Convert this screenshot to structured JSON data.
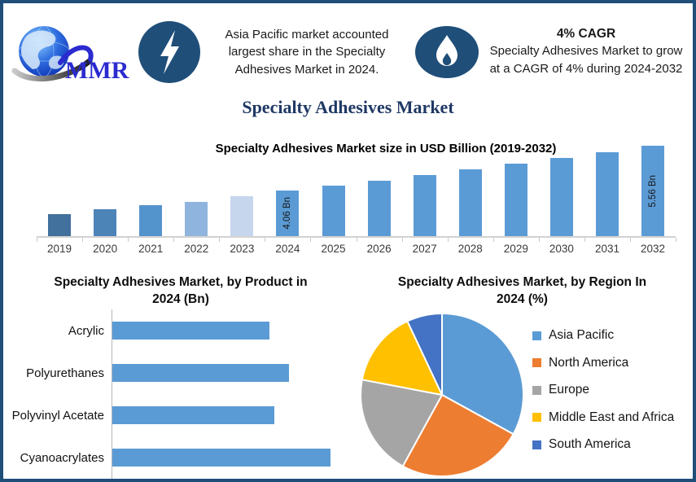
{
  "brand": {
    "name": "MMR"
  },
  "header": {
    "highlight": "Asia Pacific market accounted largest share in the Specialty Adhesives Market in 2024.",
    "cagr_title": "4% CAGR",
    "cagr_text": "Specialty Adhesives Market to grow at a CAGR of 4% during 2024-2032"
  },
  "page_title": "Specialty Adhesives Market",
  "colors": {
    "border": "#1f4e79",
    "title": "#1f3864",
    "icon_circle": "#1f4e79",
    "bar_default": "#5b9bd5",
    "axis": "#c9c9c9"
  },
  "chart_data": [
    {
      "id": "market_size",
      "type": "bar",
      "title": "Specialty Adhesives Market size in USD Billion (2019-2032)",
      "categories": [
        "2019",
        "2020",
        "2021",
        "2022",
        "2023",
        "2024",
        "2025",
        "2026",
        "2027",
        "2028",
        "2029",
        "2030",
        "2031",
        "2032"
      ],
      "values": [
        3.27,
        3.43,
        3.55,
        3.68,
        3.87,
        4.06,
        4.22,
        4.39,
        4.57,
        4.75,
        4.94,
        5.14,
        5.34,
        5.56
      ],
      "data_labels": [
        "",
        "",
        "",
        "",
        "",
        "4.06 Bn",
        "",
        "",
        "",
        "",
        "",
        "",
        "",
        "5.56 Bn"
      ],
      "bar_colors": [
        "#41719c",
        "#4c84b8",
        "#5494cd",
        "#8fb5de",
        "#c6d6ed",
        "#5b9bd5",
        "#5b9bd5",
        "#5b9bd5",
        "#5b9bd5",
        "#5b9bd5",
        "#5b9bd5",
        "#5b9bd5",
        "#5b9bd5",
        "#5b9bd5"
      ],
      "ylabel": "USD Billion",
      "ylim": [
        2.53,
        5.63
      ],
      "grid": false,
      "legend_position": "none"
    },
    {
      "id": "by_product",
      "type": "bar",
      "orientation": "horizontal",
      "title": "Specialty Adhesives Market, by Product in 2024 (Bn)",
      "categories": [
        "Acrylic",
        "Polyurethanes",
        "Polyvinyl Acetate",
        "Cyanoacrylates"
      ],
      "values": [
        0.9,
        1.01,
        0.93,
        1.25
      ],
      "xlim": [
        0,
        1.25
      ],
      "bar_color": "#5b9bd5",
      "grid": false,
      "legend_position": "none"
    },
    {
      "id": "by_region",
      "type": "pie",
      "title": "Specialty Adhesives Market, by Region In 2024 (%)",
      "labels": [
        "Asia Pacific",
        "North America",
        "Europe",
        "Middle East and Africa",
        "South America"
      ],
      "values": [
        33,
        25,
        20,
        15,
        7
      ],
      "colors": [
        "#5b9bd5",
        "#ed7d31",
        "#a5a5a5",
        "#ffc000",
        "#4472c4"
      ],
      "start_angle_deg": 0,
      "legend_position": "right"
    }
  ]
}
